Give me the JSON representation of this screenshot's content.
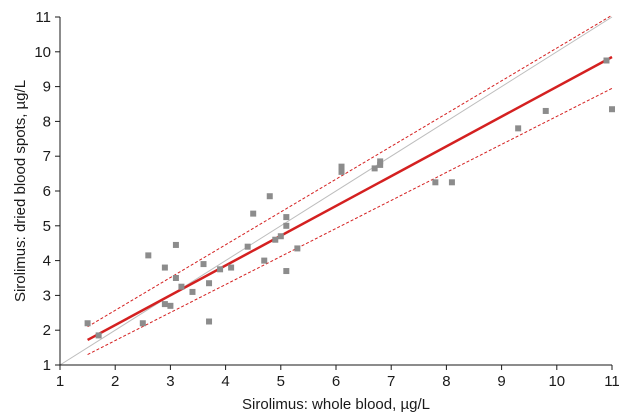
{
  "chart_data": {
    "type": "scatter",
    "xlabel": "Sirolimus: whole blood, µg/L",
    "ylabel": "Sirolimus: dried blood spots, µg/L",
    "xlim": [
      1,
      11
    ],
    "ylim": [
      1,
      11
    ],
    "xticks": [
      "1",
      "2",
      "3",
      "4",
      "5",
      "6",
      "7",
      "8",
      "9",
      "10",
      "11"
    ],
    "yticks": [
      "1",
      "2",
      "3",
      "4",
      "5",
      "6",
      "7",
      "8",
      "9",
      "10",
      "11"
    ],
    "grid": false,
    "legend": "none",
    "points": [
      {
        "x": 1.5,
        "y": 2.2
      },
      {
        "x": 1.7,
        "y": 1.85
      },
      {
        "x": 2.5,
        "y": 2.2
      },
      {
        "x": 2.6,
        "y": 4.15
      },
      {
        "x": 2.9,
        "y": 3.8
      },
      {
        "x": 2.9,
        "y": 2.75
      },
      {
        "x": 3.0,
        "y": 2.7
      },
      {
        "x": 3.1,
        "y": 4.45
      },
      {
        "x": 3.1,
        "y": 3.5
      },
      {
        "x": 3.2,
        "y": 3.25
      },
      {
        "x": 3.4,
        "y": 3.1
      },
      {
        "x": 3.6,
        "y": 3.9
      },
      {
        "x": 3.7,
        "y": 3.35
      },
      {
        "x": 3.7,
        "y": 2.25
      },
      {
        "x": 3.9,
        "y": 3.75
      },
      {
        "x": 4.1,
        "y": 3.8
      },
      {
        "x": 4.4,
        "y": 4.4
      },
      {
        "x": 4.5,
        "y": 5.35
      },
      {
        "x": 4.7,
        "y": 4.0
      },
      {
        "x": 4.8,
        "y": 5.85
      },
      {
        "x": 4.9,
        "y": 4.6
      },
      {
        "x": 5.0,
        "y": 4.7
      },
      {
        "x": 5.1,
        "y": 5.25
      },
      {
        "x": 5.1,
        "y": 5.0
      },
      {
        "x": 5.1,
        "y": 3.7
      },
      {
        "x": 5.3,
        "y": 4.35
      },
      {
        "x": 6.1,
        "y": 6.7
      },
      {
        "x": 6.1,
        "y": 6.55
      },
      {
        "x": 6.7,
        "y": 6.65
      },
      {
        "x": 6.8,
        "y": 6.85
      },
      {
        "x": 6.8,
        "y": 6.75
      },
      {
        "x": 7.8,
        "y": 6.25
      },
      {
        "x": 8.1,
        "y": 6.25
      },
      {
        "x": 9.3,
        "y": 7.8
      },
      {
        "x": 9.8,
        "y": 8.3
      },
      {
        "x": 10.9,
        "y": 9.75
      },
      {
        "x": 11.0,
        "y": 8.35
      }
    ],
    "lines": {
      "identity": {
        "x": [
          1,
          11
        ],
        "y": [
          1,
          11
        ],
        "color": "#bdbdbd"
      },
      "regression": {
        "x": [
          1.5,
          11
        ],
        "y": [
          1.72,
          9.85
        ],
        "color": "#d42020"
      },
      "ci_upper": {
        "x": [
          1.5,
          11
        ],
        "y": [
          2.1,
          11.05
        ],
        "color": "#d42020"
      },
      "ci_lower": {
        "x": [
          1.5,
          11
        ],
        "y": [
          1.3,
          8.95
        ],
        "color": "#d42020"
      }
    },
    "colors": {
      "points": "#8c8c8c",
      "regression": "#d42020",
      "identity": "#bdbdbd",
      "axis": "#1a1a1a"
    }
  }
}
